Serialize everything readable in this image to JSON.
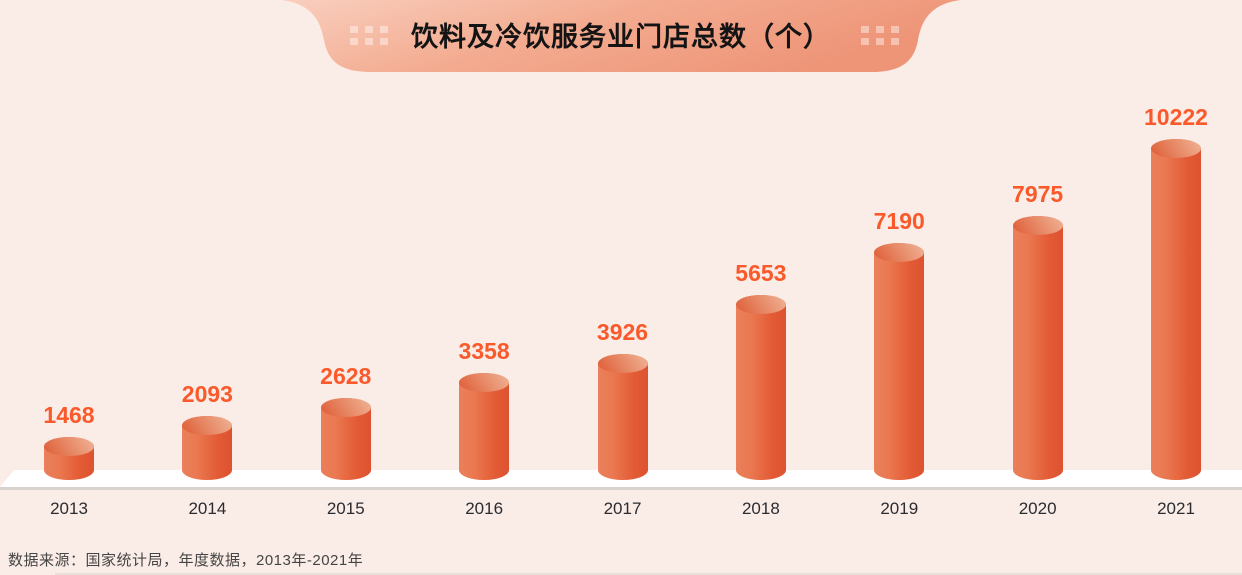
{
  "title": {
    "text": "饮料及冷饮服务业门店总数（个）"
  },
  "source": {
    "text": "数据来源：国家统计局，年度数据，2013年-2021年"
  },
  "chart_data": {
    "type": "bar",
    "bar_style": "3d-cylinder",
    "categories": [
      "2013",
      "2014",
      "2015",
      "2016",
      "2017",
      "2018",
      "2019",
      "2020",
      "2021"
    ],
    "values": [
      1468,
      2093,
      2628,
      3358,
      3926,
      5653,
      7190,
      7975,
      10222
    ],
    "title": "饮料及冷饮服务业门店总数（个）",
    "xlabel": "",
    "ylabel": "",
    "ylim": [
      0,
      11000
    ],
    "grid": false,
    "legend": "none",
    "value_labels_shown": true
  },
  "colors": {
    "background": "#faece6",
    "banner_gradient_start": "#f9cfbf",
    "banner_gradient_mid": "#f3ab90",
    "banner_gradient_end": "#ee9477",
    "title_text": "#141414",
    "bar_body_light": "#ea805c",
    "bar_body_dark": "#dd5230",
    "bar_cap_light": "#eeab8c",
    "bar_cap_dark": "#e06640",
    "value_label": "#fa5a2b",
    "year_label": "#2b2c31",
    "source_text": "#454545",
    "platform": "#ffffff",
    "platform_shadow": "#d9d1ce"
  }
}
